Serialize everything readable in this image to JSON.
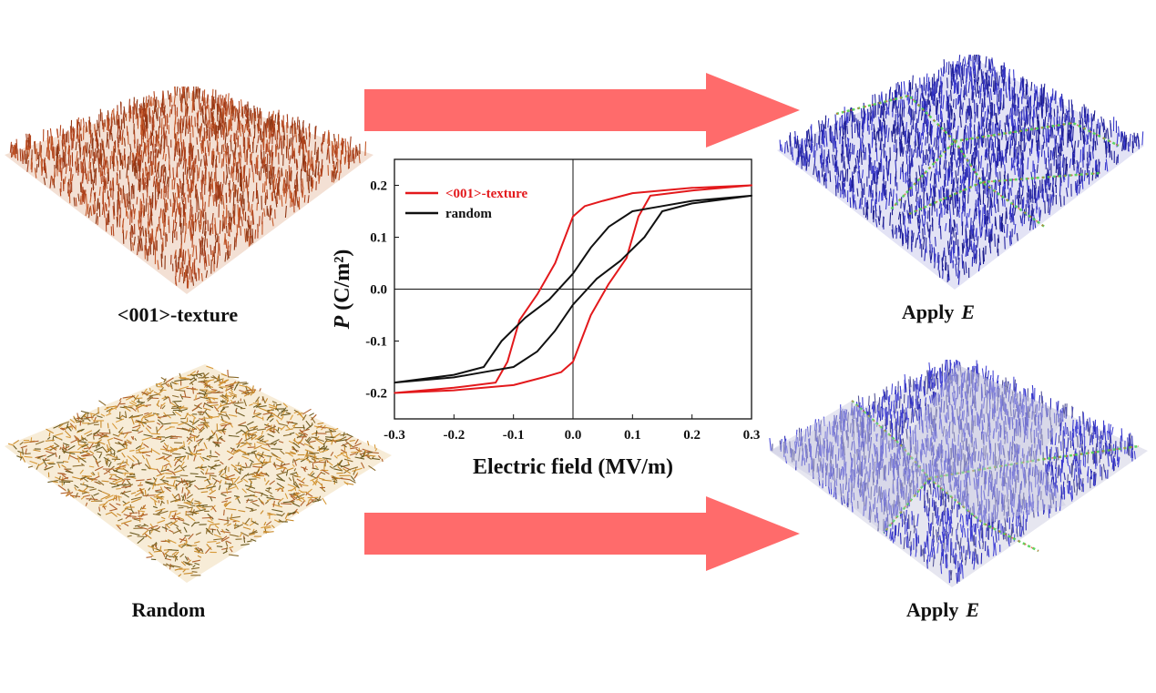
{
  "panels": {
    "top_left_caption": "<001>-texture",
    "bottom_left_caption": "Random",
    "apply_word": "Apply",
    "apply_symbol": "E"
  },
  "colors": {
    "texture_domains": "#b5471f",
    "random_domains": "#c98a2a",
    "applied_domains": "#2c2cb8",
    "domain_walls": "#4fd14f",
    "arrow": "#ff6b6b",
    "series_texture": "#e3191c",
    "series_random": "#111111"
  },
  "chart_data": {
    "type": "line",
    "xlabel": "Electric field (MV/m)",
    "ylabel_symbol": "P",
    "ylabel_unit": " (C/m²)",
    "xlim": [
      -0.3,
      0.3
    ],
    "ylim": [
      -0.25,
      0.25
    ],
    "xticks": [
      -0.3,
      -0.2,
      -0.1,
      0.0,
      0.1,
      0.2,
      0.3
    ],
    "xtick_labels": [
      "-0.3",
      "-0.2",
      "-0.1",
      "0.0",
      "0.1",
      "0.2",
      "0.3"
    ],
    "yticks": [
      -0.2,
      -0.1,
      0.0,
      0.1,
      0.2
    ],
    "ytick_labels": [
      "-0.2",
      "-0.1",
      "0.0",
      "0.1",
      "0.2"
    ],
    "legend_position": "top-left",
    "series": [
      {
        "name": "<001>-texture",
        "color": "#e3191c",
        "x": [
          -0.3,
          -0.2,
          -0.13,
          -0.11,
          -0.09,
          -0.06,
          -0.03,
          0.0,
          0.02,
          0.05,
          0.1,
          0.2,
          0.3,
          0.2,
          0.13,
          0.11,
          0.09,
          0.06,
          0.03,
          0.0,
          -0.02,
          -0.05,
          -0.1,
          -0.2,
          -0.3
        ],
        "y": [
          -0.2,
          -0.19,
          -0.18,
          -0.14,
          -0.06,
          -0.01,
          0.05,
          0.14,
          0.16,
          0.17,
          0.185,
          0.195,
          0.2,
          0.19,
          0.18,
          0.14,
          0.06,
          0.01,
          -0.05,
          -0.14,
          -0.16,
          -0.17,
          -0.185,
          -0.195,
          -0.2
        ]
      },
      {
        "name": "random",
        "color": "#111111",
        "x": [
          -0.3,
          -0.2,
          -0.15,
          -0.12,
          -0.08,
          -0.04,
          0.0,
          0.03,
          0.06,
          0.1,
          0.15,
          0.2,
          0.3,
          0.2,
          0.15,
          0.12,
          0.08,
          0.04,
          0.0,
          -0.03,
          -0.06,
          -0.1,
          -0.15,
          -0.2,
          -0.3
        ],
        "y": [
          -0.18,
          -0.165,
          -0.15,
          -0.1,
          -0.055,
          -0.02,
          0.03,
          0.08,
          0.12,
          0.15,
          0.16,
          0.17,
          0.18,
          0.165,
          0.15,
          0.1,
          0.055,
          0.02,
          -0.03,
          -0.08,
          -0.12,
          -0.15,
          -0.16,
          -0.17,
          -0.18
        ]
      }
    ]
  }
}
